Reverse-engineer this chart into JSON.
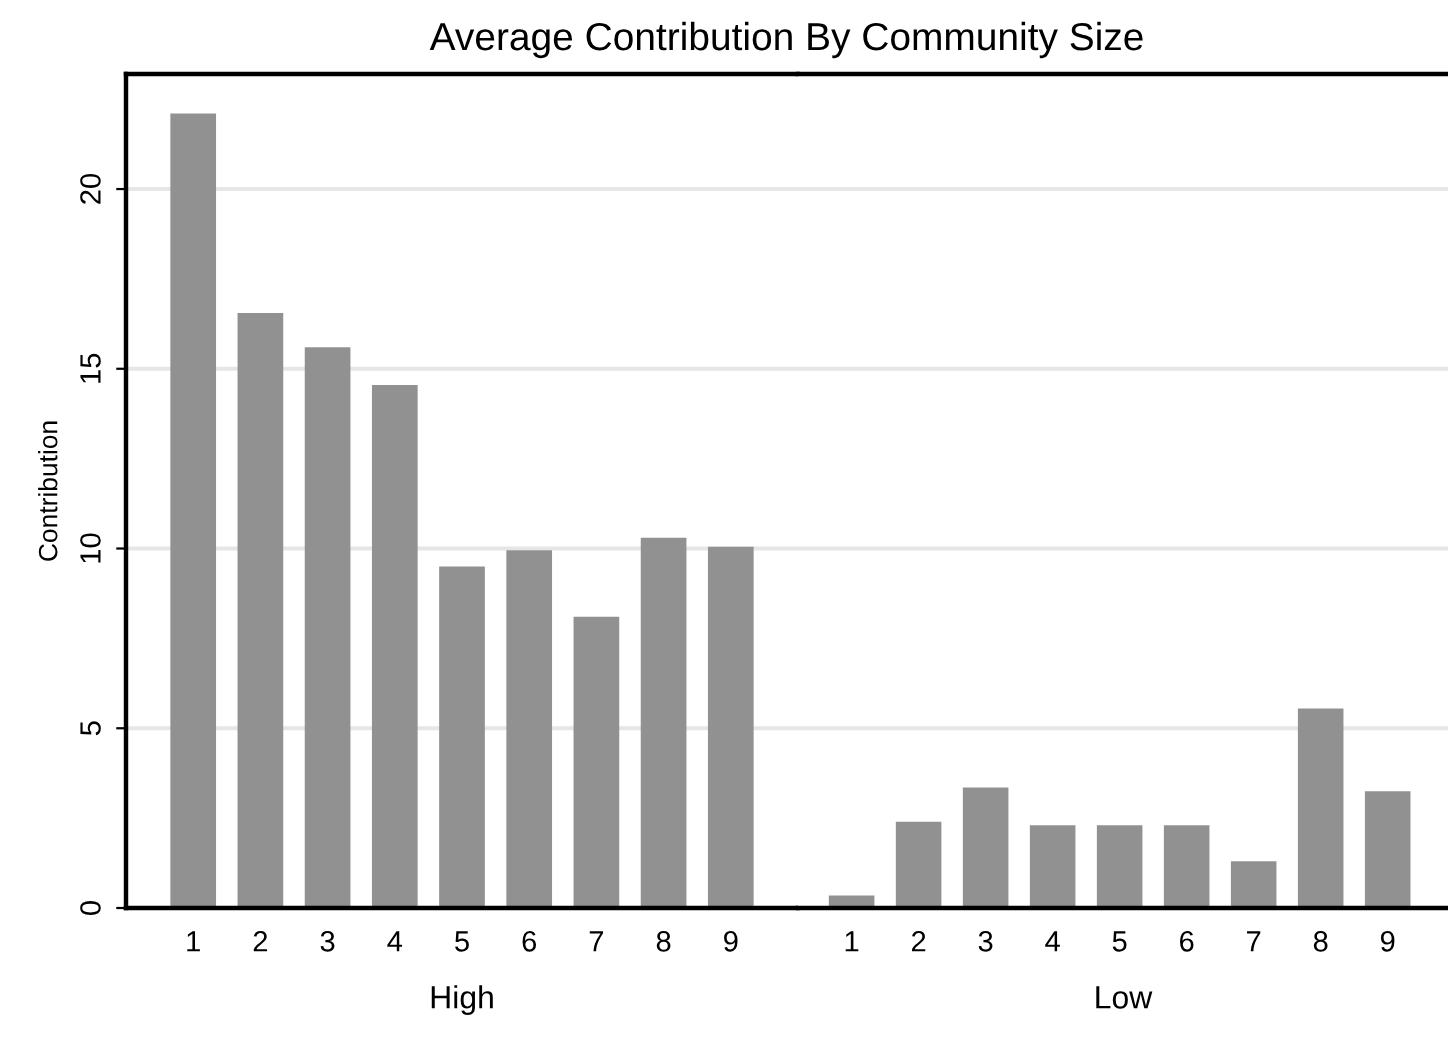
{
  "chart_data": [
    {
      "type": "bar",
      "title": "Average Contribution By Community Size",
      "xlabel": "High",
      "ylabel": "Contribution",
      "categories": [
        "1",
        "2",
        "3",
        "4",
        "5",
        "6",
        "7",
        "8",
        "9"
      ],
      "color": "#919191",
      "values": [
        22.1,
        16.55,
        15.6,
        14.55,
        9.5,
        9.95,
        8.1,
        10.3,
        10.05
      ],
      "ylim": [
        0,
        23.2
      ],
      "yticks": [
        0,
        5,
        10,
        15,
        20
      ],
      "grid": "y",
      "legend": false
    },
    {
      "type": "bar",
      "xlabel": "Low",
      "categories": [
        "1",
        "2",
        "3",
        "4",
        "5",
        "6",
        "7",
        "8",
        "9"
      ],
      "color": "#919191",
      "values": [
        0.35,
        2.4,
        3.35,
        2.3,
        2.3,
        2.3,
        1.3,
        5.55,
        3.25
      ],
      "ylim": [
        0,
        23.2
      ],
      "yticks": [
        0,
        5,
        10,
        15,
        20
      ],
      "grid": "y",
      "tick_labels": "x",
      "legend": false
    }
  ]
}
